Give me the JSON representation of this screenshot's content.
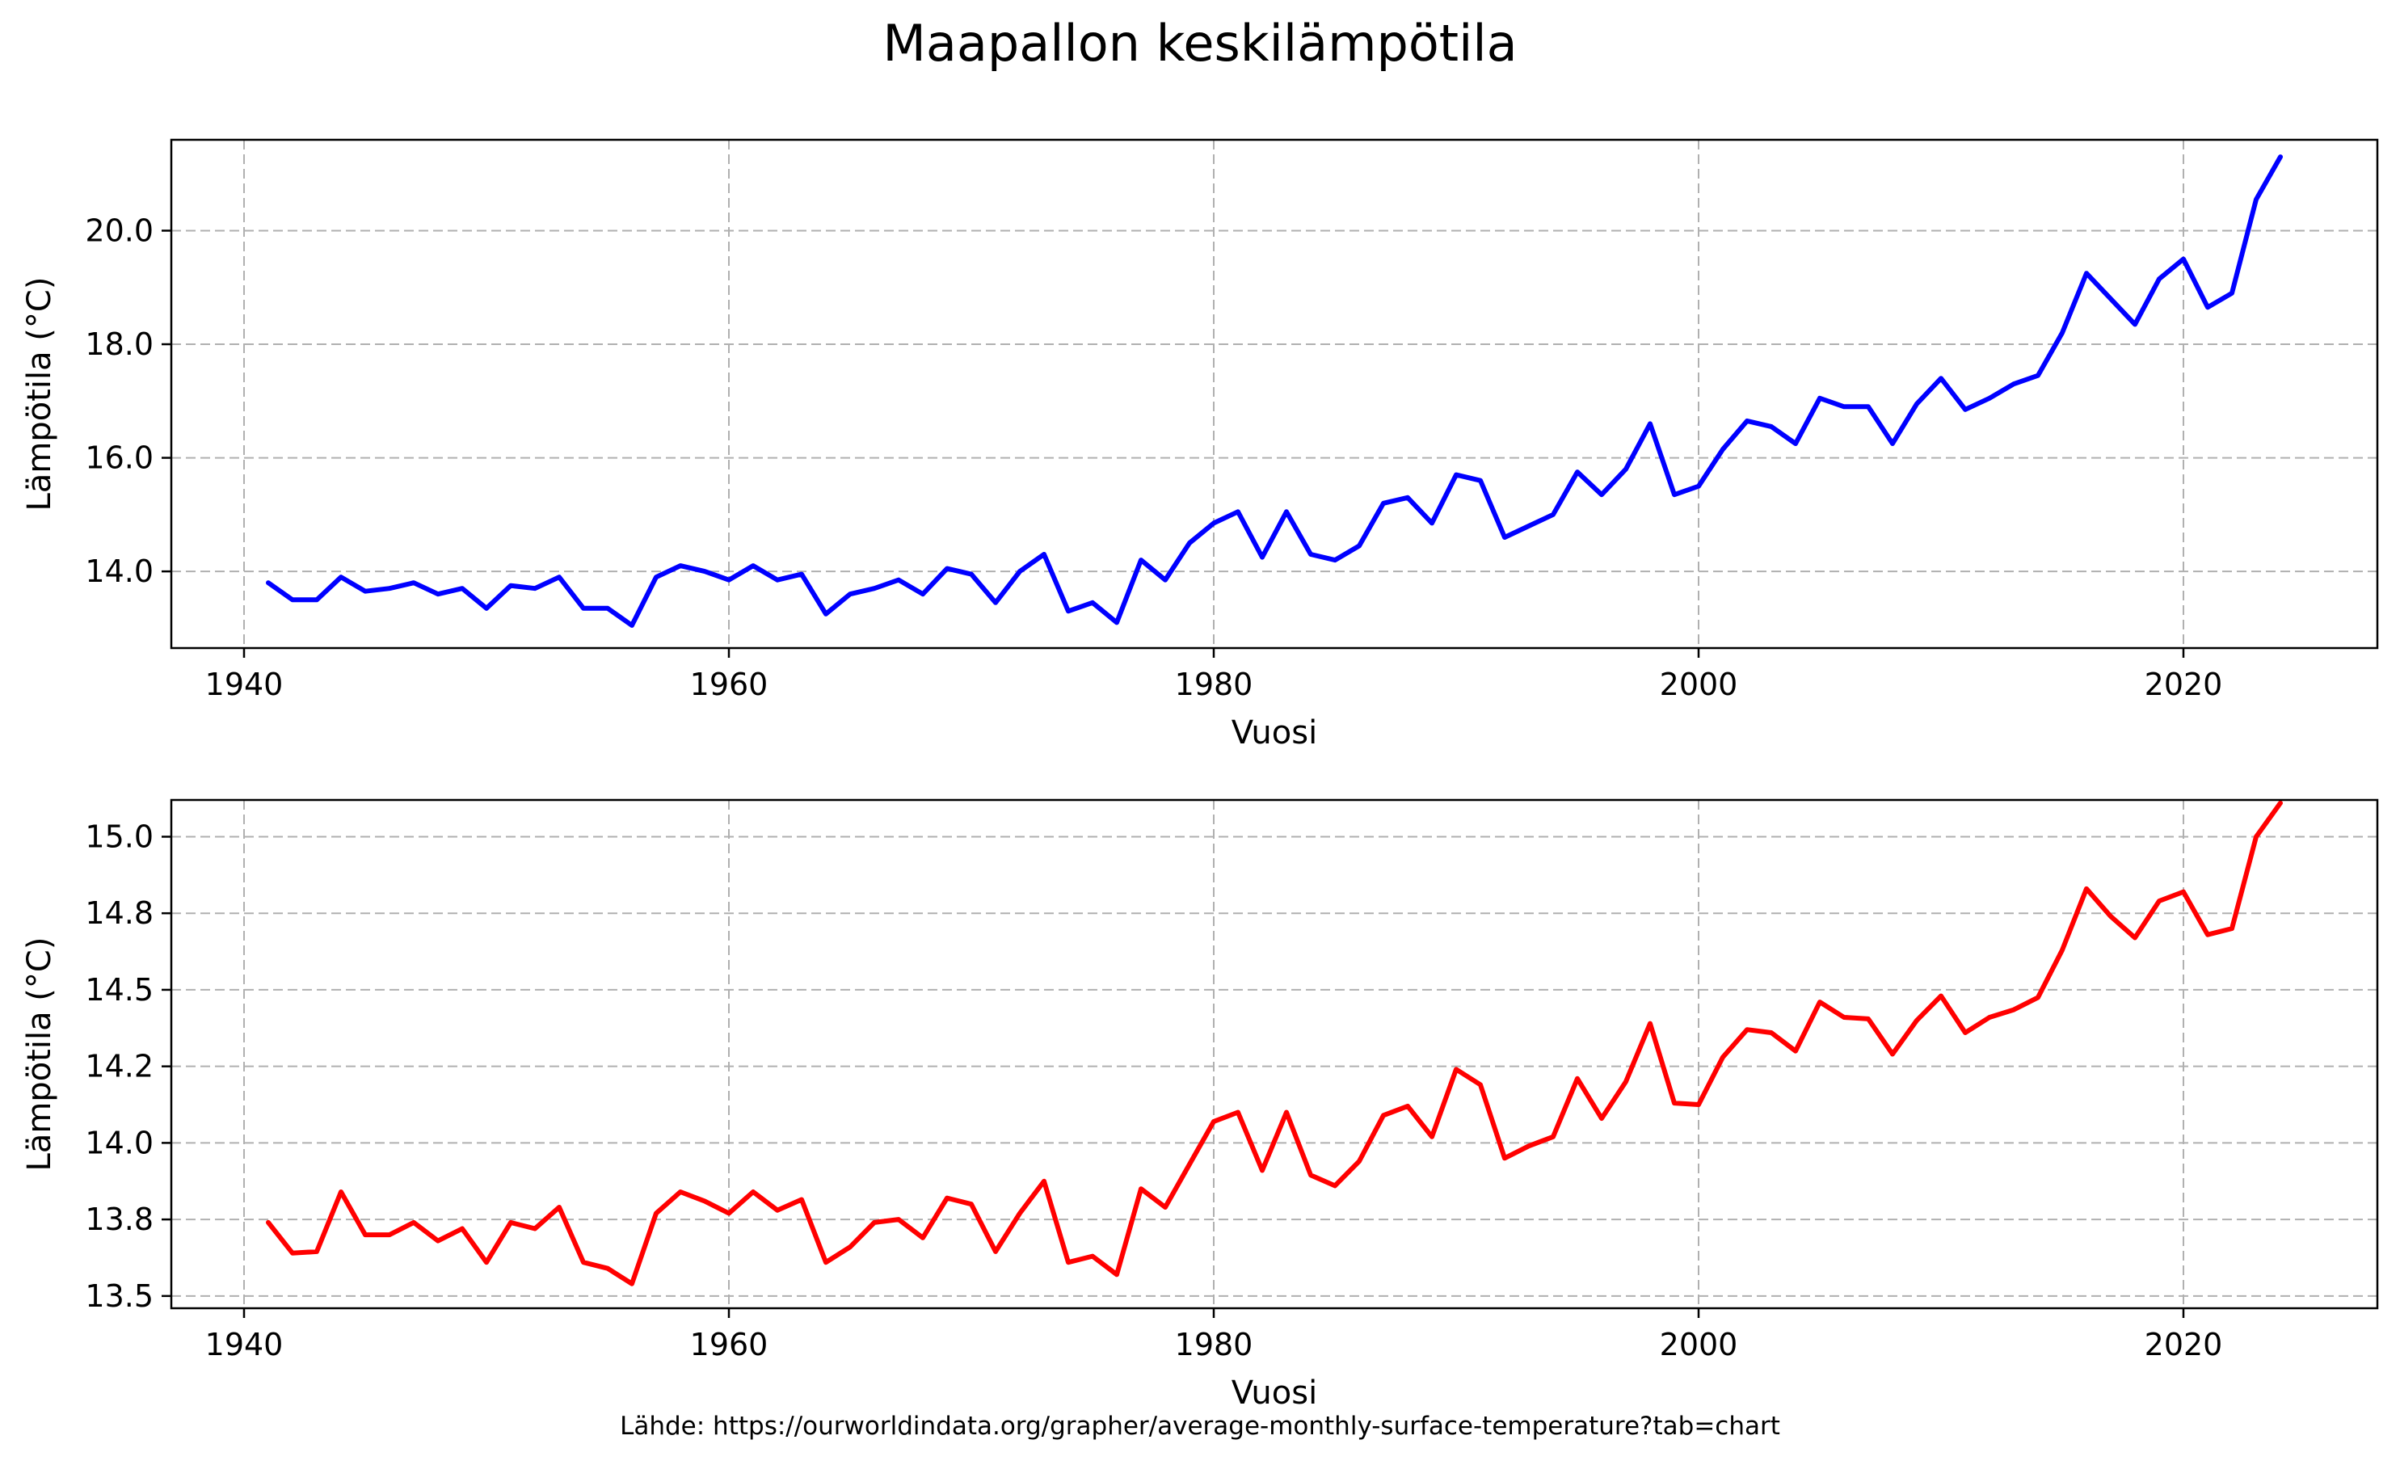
{
  "chart_data": {
    "title": "Maapallon keskilämpötila",
    "source_note": "Lähde: https://ourworldindata.org/grapher/average-monthly-surface-temperature?tab=chart",
    "panels": [
      {
        "type": "line",
        "xlabel": "Vuosi",
        "ylabel": "Lämpötila (°C)",
        "xlim": [
          1937,
          2028
        ],
        "ylim": [
          12.65,
          21.6
        ],
        "x_ticks": [
          1940,
          1960,
          1980,
          2000,
          2020
        ],
        "y_ticks": [
          14.0,
          16.0,
          18.0,
          20.0
        ],
        "y_tick_labels": [
          "14.0",
          "16.0",
          "18.0",
          "20.0"
        ],
        "grid": true,
        "series": [
          {
            "color": "#0000ff",
            "x": [
              1941,
              1942,
              1943,
              1944,
              1945,
              1946,
              1947,
              1948,
              1949,
              1950,
              1951,
              1952,
              1953,
              1954,
              1955,
              1956,
              1957,
              1958,
              1959,
              1960,
              1961,
              1962,
              1963,
              1964,
              1965,
              1966,
              1967,
              1968,
              1969,
              1970,
              1971,
              1972,
              1973,
              1974,
              1975,
              1976,
              1977,
              1978,
              1979,
              1980,
              1981,
              1982,
              1983,
              1984,
              1985,
              1986,
              1987,
              1988,
              1989,
              1990,
              1991,
              1992,
              1993,
              1994,
              1995,
              1996,
              1997,
              1998,
              1999,
              2000,
              2001,
              2002,
              2003,
              2004,
              2005,
              2006,
              2007,
              2008,
              2009,
              2010,
              2011,
              2012,
              2013,
              2014,
              2015,
              2016,
              2017,
              2018,
              2019,
              2020,
              2021,
              2022,
              2023,
              2024
            ],
            "values": [
              13.8,
              13.5,
              13.5,
              13.9,
              13.65,
              13.7,
              13.8,
              13.6,
              13.7,
              13.35,
              13.75,
              13.7,
              13.9,
              13.35,
              13.35,
              13.05,
              13.9,
              14.1,
              14.0,
              13.85,
              14.1,
              13.85,
              13.95,
              13.25,
              13.6,
              13.7,
              13.85,
              13.6,
              14.05,
              13.95,
              13.45,
              14.0,
              14.3,
              13.3,
              13.45,
              13.1,
              14.2,
              13.85,
              14.5,
              14.85,
              15.05,
              14.25,
              15.05,
              14.3,
              14.2,
              14.45,
              15.2,
              15.3,
              14.85,
              15.7,
              15.6,
              14.6,
              14.8,
              15.0,
              15.75,
              15.35,
              15.8,
              16.6,
              15.35,
              15.5,
              16.15,
              16.65,
              16.55,
              16.25,
              17.05,
              16.9,
              16.9,
              16.25,
              16.95,
              17.4,
              16.85,
              17.05,
              17.3,
              17.45,
              18.2,
              19.25,
              18.8,
              18.35,
              19.15,
              19.5,
              18.65,
              18.9,
              20.55,
              21.3
            ]
          }
        ]
      },
      {
        "type": "line",
        "xlabel": "Vuosi",
        "ylabel": "Lämpötila (°C)",
        "xlim": [
          1937,
          2028
        ],
        "ylim": [
          13.46,
          15.12
        ],
        "x_ticks": [
          1940,
          1960,
          1980,
          2000,
          2020
        ],
        "y_ticks": [
          13.5,
          13.75,
          14.0,
          14.25,
          14.5,
          14.75,
          15.0
        ],
        "y_tick_labels": [
          "13.5",
          "13.8",
          "14.0",
          "14.2",
          "14.5",
          "14.8",
          "15.0"
        ],
        "grid": true,
        "series": [
          {
            "color": "#ff0000",
            "x": [
              1941,
              1942,
              1943,
              1944,
              1945,
              1946,
              1947,
              1948,
              1949,
              1950,
              1951,
              1952,
              1953,
              1954,
              1955,
              1956,
              1957,
              1958,
              1959,
              1960,
              1961,
              1962,
              1963,
              1964,
              1965,
              1966,
              1967,
              1968,
              1969,
              1970,
              1971,
              1972,
              1973,
              1974,
              1975,
              1976,
              1977,
              1978,
              1979,
              1980,
              1981,
              1982,
              1983,
              1984,
              1985,
              1986,
              1987,
              1988,
              1989,
              1990,
              1991,
              1992,
              1993,
              1994,
              1995,
              1996,
              1997,
              1998,
              1999,
              2000,
              2001,
              2002,
              2003,
              2004,
              2005,
              2006,
              2007,
              2008,
              2009,
              2010,
              2011,
              2012,
              2013,
              2014,
              2015,
              2016,
              2017,
              2018,
              2019,
              2020,
              2021,
              2022,
              2023,
              2024
            ],
            "values": [
              13.74,
              13.64,
              13.645,
              13.84,
              13.7,
              13.7,
              13.74,
              13.68,
              13.72,
              13.61,
              13.74,
              13.72,
              13.79,
              13.61,
              13.59,
              13.54,
              13.77,
              13.84,
              13.81,
              13.77,
              13.84,
              13.78,
              13.815,
              13.61,
              13.66,
              13.74,
              13.75,
              13.69,
              13.82,
              13.8,
              13.645,
              13.77,
              13.875,
              13.61,
              13.63,
              13.57,
              13.85,
              13.79,
              13.93,
              14.07,
              14.1,
              13.91,
              14.1,
              13.895,
              13.86,
              13.94,
              14.09,
              14.12,
              14.02,
              14.24,
              14.19,
              13.95,
              13.99,
              14.02,
              14.21,
              14.08,
              14.2,
              14.39,
              14.13,
              14.125,
              14.28,
              14.37,
              14.36,
              14.3,
              14.46,
              14.41,
              14.405,
              14.29,
              14.4,
              14.48,
              14.36,
              14.41,
              14.435,
              14.475,
              14.63,
              14.83,
              14.74,
              14.67,
              14.79,
              14.82,
              14.68,
              14.7,
              15.0,
              15.11
            ]
          }
        ]
      }
    ]
  }
}
